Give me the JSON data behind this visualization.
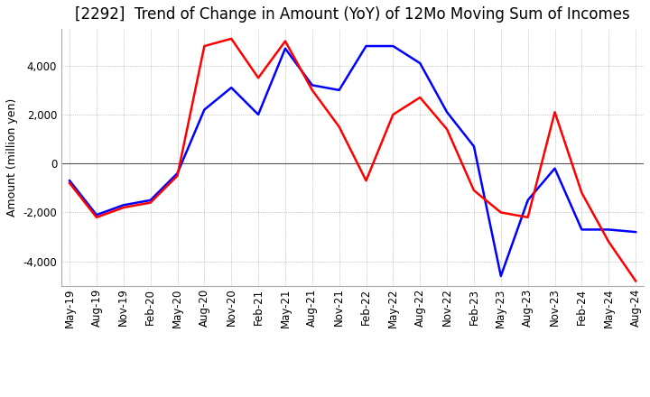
{
  "title": "[2292]  Trend of Change in Amount (YoY) of 12Mo Moving Sum of Incomes",
  "ylabel": "Amount (million yen)",
  "ylim": [
    -5000,
    5500
  ],
  "yticks": [
    -4000,
    -2000,
    0,
    2000,
    4000
  ],
  "x_labels": [
    "May-19",
    "Aug-19",
    "Nov-19",
    "Feb-20",
    "May-20",
    "Aug-20",
    "Nov-20",
    "Feb-21",
    "May-21",
    "Aug-21",
    "Nov-21",
    "Feb-22",
    "May-22",
    "Aug-22",
    "Nov-22",
    "Feb-23",
    "May-23",
    "Aug-23",
    "Nov-23",
    "Feb-24",
    "May-24",
    "Aug-24"
  ],
  "ordinary_income": [
    -700,
    -2100,
    -1700,
    -1500,
    -400,
    2200,
    3100,
    2000,
    4700,
    3200,
    3000,
    4800,
    4800,
    4100,
    2100,
    700,
    -4600,
    -1500,
    -200,
    -2700,
    -2700,
    -2800
  ],
  "net_income": [
    -800,
    -2200,
    -1800,
    -1600,
    -500,
    4800,
    5100,
    3500,
    5000,
    3000,
    1500,
    -700,
    2000,
    2700,
    1400,
    -1100,
    -2000,
    -2200,
    2100,
    -1200,
    -3200,
    -4800
  ],
  "ordinary_color": "#0000FF",
  "net_color": "#FF0000",
  "line_width": 1.8,
  "background_color": "#FFFFFF",
  "grid_color": "#999999",
  "title_fontsize": 12,
  "axis_fontsize": 9,
  "tick_fontsize": 8.5,
  "legend_fontsize": 10
}
